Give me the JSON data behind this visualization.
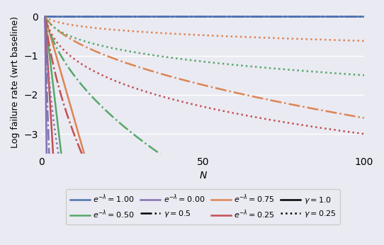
{
  "N_max": 100,
  "e_neg_lambda_values": [
    1.0,
    0.75,
    0.5,
    0.25,
    0.0
  ],
  "e_neg_lambda_colors": [
    "#4c72b0",
    "#dd8452",
    "#55a868",
    "#c44e52",
    "#8172b2"
  ],
  "gamma_values": [
    1.0,
    0.5,
    0.25
  ],
  "gamma_linestyles": [
    "solid",
    "dashdot",
    "dotted"
  ],
  "e_neg_lambda_zero_sub": 0.001,
  "ylim": [
    -3.5,
    0.15
  ],
  "xlim": [
    0,
    100
  ],
  "xlabel": "N",
  "ylabel": "Log failure rate (wrt baseline)",
  "xticks": [
    0,
    50,
    100
  ],
  "yticks": [
    0,
    -1,
    -2,
    -3
  ],
  "legend_entries_row1": [
    {
      "label": "$e^{-\\lambda} = 1.00$",
      "color": "#4c72b0",
      "ls": "solid"
    },
    {
      "label": "$e^{-\\lambda} = 0.50$",
      "color": "#55a868",
      "ls": "solid"
    },
    {
      "label": "$e^{-\\lambda} = 0.00$",
      "color": "#8172b2",
      "ls": "solid"
    },
    {
      "label": "$\\gamma = 0.5$",
      "color": "black",
      "ls": "dashdot"
    }
  ],
  "legend_entries_row2": [
    {
      "label": "$e^{-\\lambda} = 0.75$",
      "color": "#dd8452",
      "ls": "solid"
    },
    {
      "label": "$e^{-\\lambda} = 0.25$",
      "color": "#c44e52",
      "ls": "solid"
    },
    {
      "label": "$\\gamma = 1.0$",
      "color": "black",
      "ls": "solid"
    },
    {
      "label": "$\\gamma = 0.25$",
      "color": "black",
      "ls": "dotted"
    }
  ],
  "bg_color": "#eaeaf2",
  "grid_color": "white",
  "linewidth": 1.8,
  "fontsize_legend": 8,
  "fontsize_xlabel": 10,
  "fontsize_ylabel": 9
}
